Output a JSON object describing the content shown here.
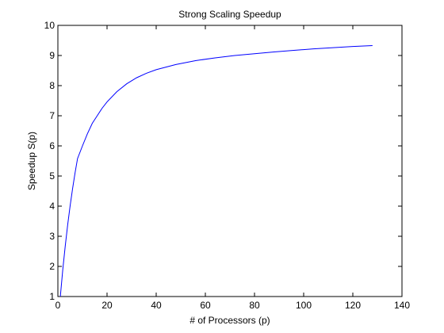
{
  "colors": {
    "background": "#ffffff",
    "axes": "#000000",
    "line": "#0000ff"
  },
  "chart_data": {
    "type": "line",
    "title": "Strong Scaling Speedup",
    "xlabel": "# of Processors (p)",
    "ylabel": "Speedup S(p)",
    "xlim": [
      0,
      140
    ],
    "ylim": [
      1,
      10
    ],
    "xticks": [
      0,
      20,
      40,
      60,
      80,
      100,
      120,
      140
    ],
    "yticks": [
      1,
      2,
      3,
      4,
      5,
      6,
      7,
      8,
      9,
      10
    ],
    "grid": false,
    "legend": "none",
    "series": [
      {
        "color": "#0000ff",
        "x": [
          1,
          2,
          3,
          4,
          5,
          6,
          7,
          8,
          10,
          12,
          14,
          16,
          18,
          20,
          24,
          28,
          32,
          36,
          40,
          48,
          56,
          64,
          72,
          80,
          88,
          96,
          104,
          112,
          120,
          128
        ],
        "y": [
          1.0,
          1.9,
          2.68,
          3.39,
          4.02,
          4.59,
          5.11,
          5.58,
          6.0,
          6.4,
          6.75,
          7.0,
          7.25,
          7.46,
          7.8,
          8.06,
          8.26,
          8.41,
          8.53,
          8.7,
          8.83,
          8.92,
          9.0,
          9.06,
          9.12,
          9.17,
          9.22,
          9.26,
          9.3,
          9.33
        ]
      }
    ]
  }
}
